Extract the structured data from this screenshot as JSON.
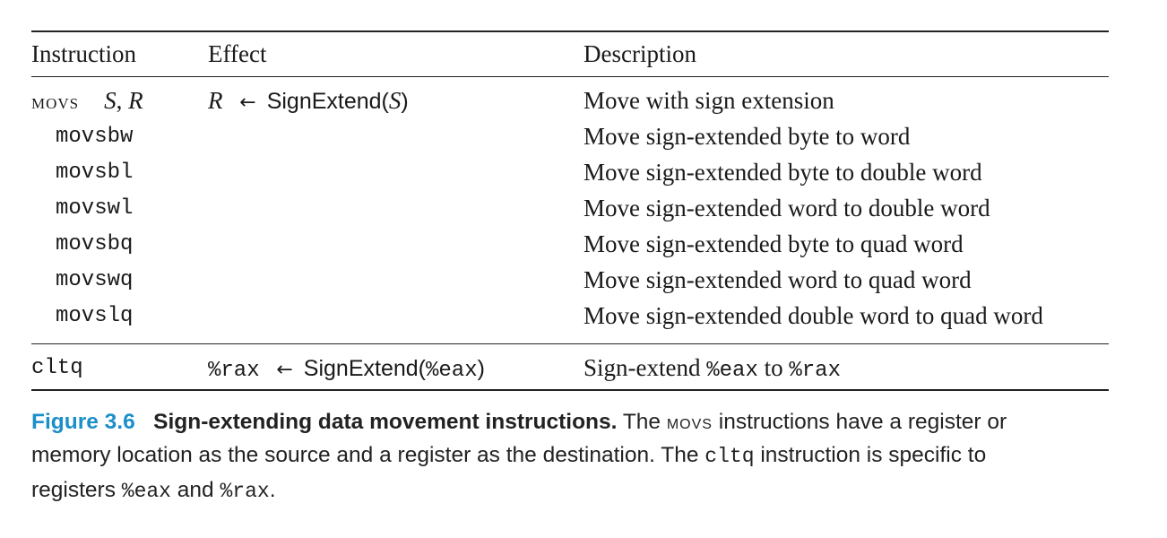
{
  "table": {
    "headers": {
      "instruction": "Instruction",
      "effect": "Effect",
      "description": "Description"
    },
    "movs": {
      "name": "movs",
      "operand_s": "S",
      "sep": ", ",
      "operand_r": "R",
      "effect_dest": "R",
      "arrow": "←",
      "effect_fn": "SignExtend(",
      "effect_arg": "S",
      "effect_close": ")",
      "description": "Move with sign extension"
    },
    "variants": [
      {
        "name": "movsbw",
        "description": "Move sign-extended byte to word"
      },
      {
        "name": "movsbl",
        "description": "Move sign-extended byte to double word"
      },
      {
        "name": "movswl",
        "description": "Move sign-extended word to double word"
      },
      {
        "name": "movsbq",
        "description": "Move sign-extended byte to quad word"
      },
      {
        "name": "movswq",
        "description": "Move sign-extended word to quad word"
      },
      {
        "name": "movslq",
        "description": "Move sign-extended double word to quad word"
      }
    ],
    "cltq": {
      "name": "cltq",
      "effect_dest": "%rax",
      "arrow": "←",
      "effect_fn": "SignExtend(",
      "effect_arg": "%eax",
      "effect_close": ")",
      "desc_pre": "Sign-extend ",
      "desc_reg1": "%eax",
      "desc_mid": " to ",
      "desc_reg2": "%rax"
    }
  },
  "caption": {
    "label": "Figure 3.6",
    "title": "Sign-extending data movement instructions.",
    "text1": " The ",
    "movs": "movs",
    "text2": " instructions have a register or memory location as the source and a register as the destination. The ",
    "cltq": "cltq",
    "text3": " instruction is specific to registers ",
    "eax": "%eax",
    "text4": " and ",
    "rax": "%rax",
    "text5": "."
  }
}
